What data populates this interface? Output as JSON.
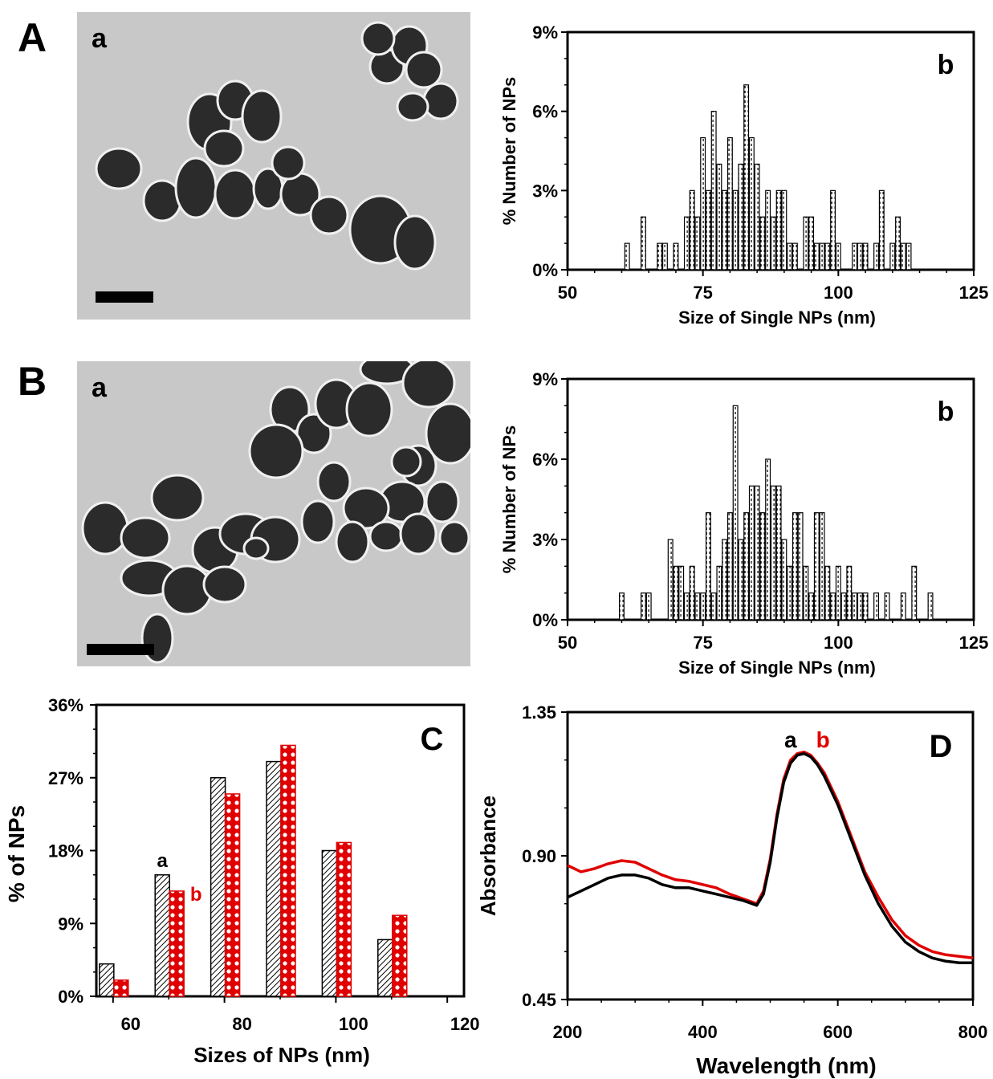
{
  "panels": {
    "A": {
      "letter": "A",
      "sub_a": "a",
      "sub_b": "b"
    },
    "B": {
      "letter": "B",
      "sub_a": "a",
      "sub_b": "b"
    }
  },
  "colors": {
    "series_a": "#000000",
    "series_b": "#e00000",
    "tem_bg": "#c8c8c8",
    "particle": "#2a2a2a"
  },
  "chart_data": [
    {
      "id": "A-b",
      "type": "bar",
      "panel_label": "b",
      "xlabel": "Size of Single NPs (nm)",
      "ylabel": "% Number of NPs",
      "xlim": [
        50,
        125
      ],
      "ylim": [
        0,
        9
      ],
      "xticks": [
        50,
        75,
        100,
        125
      ],
      "xtick_labels": [
        "50",
        "75",
        "100",
        "125"
      ],
      "yticks": [
        0,
        3,
        6,
        9
      ],
      "ytick_labels": [
        "0%",
        "3%",
        "6%",
        "9%"
      ],
      "x": [
        61,
        64,
        67,
        68,
        70,
        72,
        73,
        74,
        75,
        76,
        77,
        78,
        79,
        80,
        81,
        82,
        83,
        84,
        85,
        86,
        87,
        88,
        89,
        90,
        91,
        92,
        94,
        95,
        96,
        97,
        98,
        99,
        100,
        103,
        104,
        105,
        107,
        108,
        110,
        111,
        112,
        113
      ],
      "values": [
        1,
        2,
        1,
        1,
        1,
        2,
        3,
        2,
        5,
        3,
        6,
        4,
        3,
        5,
        3,
        4,
        7,
        5,
        4,
        2,
        3,
        2,
        3,
        3,
        1,
        1,
        2,
        2,
        1,
        1,
        1,
        3,
        1,
        1,
        1,
        1,
        1,
        3,
        1,
        2,
        1,
        1
      ]
    },
    {
      "id": "B-b",
      "type": "bar",
      "panel_label": "b",
      "xlabel": "Size of Single NPs (nm)",
      "ylabel": "% Number of NPs",
      "xlim": [
        50,
        125
      ],
      "ylim": [
        0,
        9
      ],
      "xticks": [
        50,
        75,
        100,
        125
      ],
      "xtick_labels": [
        "50",
        "75",
        "100",
        "125"
      ],
      "yticks": [
        0,
        3,
        6,
        9
      ],
      "ytick_labels": [
        "0%",
        "3%",
        "6%",
        "9%"
      ],
      "x": [
        60,
        64,
        65,
        69,
        70,
        71,
        72,
        73,
        74,
        75,
        76,
        77,
        78,
        79,
        80,
        81,
        82,
        83,
        84,
        85,
        86,
        87,
        88,
        89,
        90,
        91,
        92,
        93,
        94,
        95,
        96,
        97,
        98,
        99,
        100,
        101,
        102,
        103,
        104,
        105,
        107,
        109,
        112,
        114,
        117
      ],
      "values": [
        1,
        1,
        1,
        3,
        2,
        2,
        1,
        2,
        1,
        1,
        4,
        1,
        2,
        3,
        4,
        8,
        3,
        4,
        5,
        5,
        4,
        6,
        5,
        5,
        3,
        2,
        4,
        4,
        2,
        1,
        4,
        4,
        2,
        1,
        2,
        1,
        2,
        1,
        1,
        1,
        1,
        1,
        1,
        2,
        1
      ]
    },
    {
      "id": "C",
      "type": "bar",
      "panel_label": "C",
      "xlabel": "Sizes of NPs (nm)",
      "ylabel": "% of NPs",
      "xlim": [
        57,
        123
      ],
      "ylim": [
        0,
        36
      ],
      "xticks": [
        60,
        80,
        100,
        120
      ],
      "xtick_labels": [
        "60",
        "80",
        "100",
        "120"
      ],
      "yticks": [
        0,
        9,
        18,
        27,
        36
      ],
      "ytick_labels": [
        "0%",
        "9%",
        "18%",
        "27%",
        "36%"
      ],
      "categories": [
        "60",
        "70",
        "80",
        "90",
        "100",
        "110"
      ],
      "category_x": [
        60,
        70,
        80,
        90,
        100,
        110
      ],
      "series": [
        {
          "name": "a",
          "values": [
            4,
            15,
            27,
            29,
            18,
            7
          ]
        },
        {
          "name": "b",
          "values": [
            2,
            13,
            25,
            31,
            19,
            10
          ]
        }
      ]
    },
    {
      "id": "D",
      "type": "line",
      "panel_label": "D",
      "xlabel": "Wavelength (nm)",
      "ylabel": "Absorbance",
      "xlim": [
        200,
        800
      ],
      "ylim": [
        0.45,
        1.35
      ],
      "xticks": [
        200,
        400,
        600,
        800
      ],
      "xtick_labels": [
        "200",
        "400",
        "600",
        "800"
      ],
      "yticks": [
        0.45,
        0.9,
        1.35
      ],
      "ytick_labels": [
        "0.45",
        "0.90",
        "1.35"
      ],
      "series": [
        {
          "name": "a",
          "x": [
            200,
            220,
            240,
            260,
            280,
            300,
            320,
            340,
            360,
            380,
            400,
            420,
            440,
            460,
            480,
            490,
            500,
            510,
            520,
            530,
            540,
            550,
            560,
            570,
            580,
            600,
            620,
            640,
            660,
            680,
            700,
            720,
            740,
            760,
            780,
            800
          ],
          "y": [
            0.77,
            0.79,
            0.81,
            0.83,
            0.84,
            0.84,
            0.83,
            0.81,
            0.8,
            0.8,
            0.79,
            0.78,
            0.77,
            0.76,
            0.745,
            0.78,
            0.88,
            1.02,
            1.13,
            1.19,
            1.215,
            1.22,
            1.21,
            1.185,
            1.15,
            1.06,
            0.95,
            0.84,
            0.75,
            0.68,
            0.63,
            0.6,
            0.58,
            0.57,
            0.565,
            0.565
          ]
        },
        {
          "name": "b",
          "x": [
            200,
            220,
            240,
            260,
            280,
            300,
            320,
            340,
            360,
            380,
            400,
            420,
            440,
            460,
            480,
            490,
            500,
            510,
            520,
            530,
            540,
            550,
            560,
            570,
            580,
            600,
            620,
            640,
            660,
            680,
            700,
            720,
            740,
            760,
            780,
            800
          ],
          "y": [
            0.87,
            0.85,
            0.86,
            0.875,
            0.885,
            0.88,
            0.86,
            0.84,
            0.825,
            0.82,
            0.81,
            0.8,
            0.78,
            0.765,
            0.75,
            0.79,
            0.89,
            1.03,
            1.14,
            1.2,
            1.22,
            1.225,
            1.215,
            1.19,
            1.16,
            1.07,
            0.96,
            0.85,
            0.77,
            0.7,
            0.65,
            0.62,
            0.6,
            0.59,
            0.585,
            0.58
          ]
        }
      ]
    }
  ]
}
